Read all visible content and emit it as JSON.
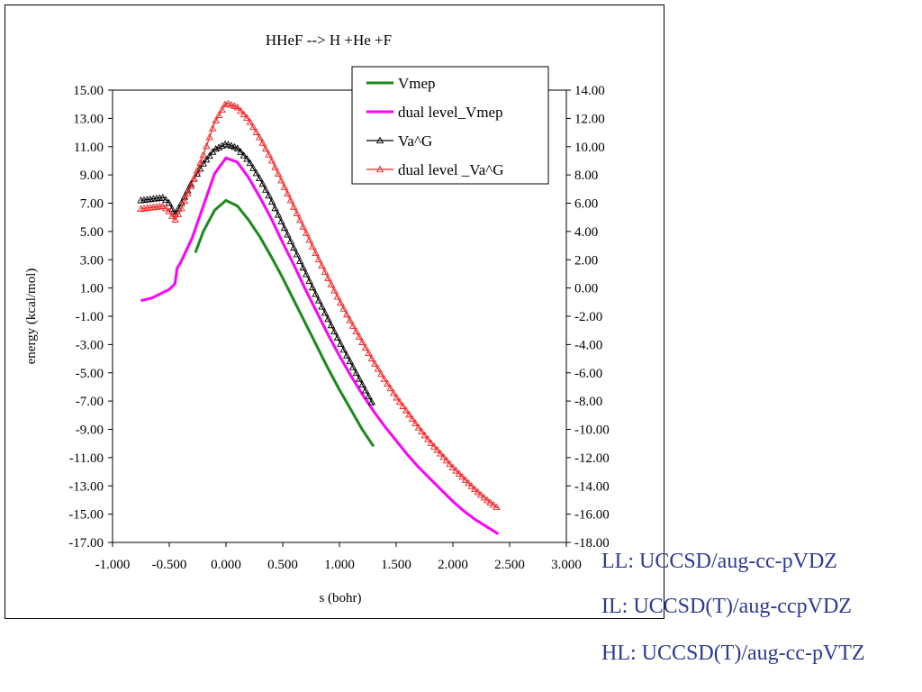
{
  "chart_data": {
    "type": "line",
    "title": "HHeF --> H +He +F",
    "xlabel": "s (bohr)",
    "ylabel": "energy (kcal/mol)",
    "xlim": [
      -1.0,
      3.0
    ],
    "xticks": [
      -1.0,
      -0.5,
      0.0,
      0.5,
      1.0,
      1.5,
      2.0,
      2.5,
      3.0
    ],
    "xtick_labels": [
      "-1.000",
      "-0.500",
      "0.000",
      "0.500",
      "1.000",
      "1.500",
      "2.000",
      "2.500",
      "3.000"
    ],
    "ylim": [
      -17,
      15
    ],
    "yticks": [
      15,
      13,
      11,
      9,
      7,
      5,
      3,
      1,
      -1,
      -3,
      -5,
      -7,
      -9,
      -11,
      -13,
      -15,
      -17
    ],
    "ytick_labels": [
      "15.00",
      "13.00",
      "11.00",
      "9.00",
      "7.00",
      "5.00",
      "3.00",
      "1.00",
      "-1.00",
      "-3.00",
      "-5.00",
      "-7.00",
      "-9.00",
      "-11.00",
      "-13.00",
      "-15.00",
      "-17.00"
    ],
    "y2lim": [
      -18,
      14
    ],
    "y2ticks": [
      14,
      12,
      10,
      8,
      6,
      4,
      2,
      0,
      -2,
      -4,
      -6,
      -8,
      -10,
      -12,
      -14,
      -16,
      -18
    ],
    "y2tick_labels": [
      "14.00",
      "12.00",
      "10.00",
      "8.00",
      "6.00",
      "4.00",
      "2.00",
      "0.00",
      "-2.00",
      "-4.00",
      "-6.00",
      "-8.00",
      "-10.00",
      "-12.00",
      "-14.00",
      "-16.00",
      "-18.00"
    ],
    "grid": false,
    "legend_position": "top-right",
    "series": [
      {
        "name": "Vmep",
        "color": "#1a8a1a",
        "marker": "none",
        "x": [
          -0.27,
          -0.2,
          -0.1,
          0.0,
          0.1,
          0.2,
          0.3,
          0.4,
          0.5,
          0.6,
          0.7,
          0.8,
          0.9,
          1.0,
          1.1,
          1.2,
          1.3
        ],
        "y": [
          3.5,
          5.0,
          6.5,
          7.2,
          6.8,
          5.8,
          4.6,
          3.2,
          1.7,
          0.1,
          -1.5,
          -3.1,
          -4.7,
          -6.2,
          -7.6,
          -9.0,
          -10.2
        ]
      },
      {
        "name": "dual level_Vmep",
        "color": "#ff00ff",
        "marker": "none",
        "x": [
          -0.75,
          -0.65,
          -0.55,
          -0.5,
          -0.45,
          -0.43,
          -0.4,
          -0.3,
          -0.2,
          -0.1,
          0.0,
          0.1,
          0.2,
          0.3,
          0.4,
          0.5,
          0.6,
          0.7,
          0.8,
          0.9,
          1.0,
          1.1,
          1.2,
          1.3,
          1.4,
          1.5,
          1.6,
          1.7,
          1.8,
          1.9,
          2.0,
          2.1,
          2.2,
          2.3,
          2.4
        ],
        "y": [
          0.1,
          0.3,
          0.7,
          0.9,
          1.3,
          2.4,
          2.8,
          4.5,
          6.8,
          9.1,
          10.2,
          9.9,
          8.8,
          7.4,
          5.9,
          4.2,
          2.6,
          0.9,
          -0.7,
          -2.3,
          -3.8,
          -5.2,
          -6.5,
          -7.7,
          -8.8,
          -9.8,
          -10.8,
          -11.7,
          -12.5,
          -13.3,
          -14.1,
          -14.8,
          -15.4,
          -15.9,
          -16.4
        ]
      },
      {
        "name": "Va^G",
        "color": "#000000",
        "marker": "triangle",
        "x": [
          -0.75,
          -0.65,
          -0.55,
          -0.5,
          -0.45,
          -0.4,
          -0.3,
          -0.2,
          -0.1,
          0.0,
          0.1,
          0.2,
          0.3,
          0.4,
          0.5,
          0.6,
          0.7,
          0.8,
          0.9,
          1.0,
          1.1,
          1.2,
          1.3
        ],
        "y": [
          7.2,
          7.3,
          7.4,
          7.0,
          6.2,
          6.9,
          8.5,
          9.8,
          10.8,
          11.2,
          10.9,
          10.0,
          8.7,
          7.2,
          5.5,
          3.8,
          2.1,
          0.4,
          -1.2,
          -2.8,
          -4.3,
          -5.8,
          -7.3
        ]
      },
      {
        "name": "dual level _Va^G",
        "color": "#ff2020",
        "marker": "triangle",
        "x": [
          -0.75,
          -0.65,
          -0.55,
          -0.5,
          -0.45,
          -0.4,
          -0.3,
          -0.2,
          -0.1,
          0.0,
          0.1,
          0.2,
          0.3,
          0.4,
          0.5,
          0.6,
          0.7,
          0.8,
          0.9,
          1.0,
          1.1,
          1.2,
          1.3,
          1.4,
          1.5,
          1.6,
          1.7,
          1.8,
          1.9,
          2.0,
          2.1,
          2.2,
          2.3,
          2.4
        ],
        "y": [
          6.6,
          6.7,
          6.8,
          6.4,
          5.8,
          6.5,
          8.4,
          10.4,
          12.7,
          14.1,
          13.8,
          12.9,
          11.6,
          10.1,
          8.4,
          6.7,
          5.0,
          3.3,
          1.7,
          0.1,
          -1.4,
          -2.8,
          -4.2,
          -5.5,
          -6.7,
          -7.8,
          -8.9,
          -9.9,
          -10.8,
          -11.7,
          -12.5,
          -13.3,
          -14.0,
          -14.6
        ]
      }
    ]
  },
  "notes": [
    "LL: UCCSD/aug-cc-pVDZ",
    "IL:  UCCSD(T)/aug-ccpVDZ",
    "HL: UCCSD(T)/aug-cc-pVTZ"
  ]
}
